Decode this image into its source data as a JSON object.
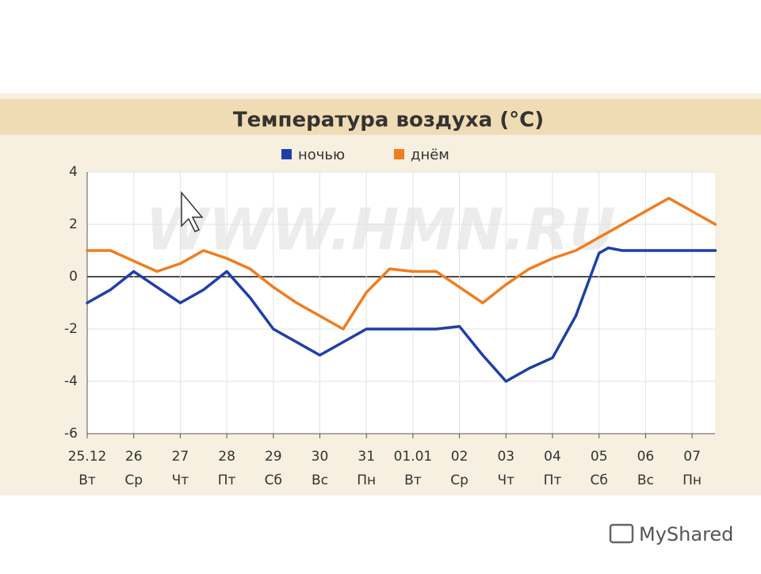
{
  "chart_data": {
    "type": "line",
    "title": "Температура воздуха (°С)",
    "watermark": "WWW.HMN.RU",
    "brand": "MyShared",
    "xlim": [
      0,
      13.5
    ],
    "xticks": [
      {
        "value": 0,
        "label": "25.12"
      },
      {
        "value": 1,
        "label": "26"
      },
      {
        "value": 2,
        "label": "27"
      },
      {
        "value": 3,
        "label": "28"
      },
      {
        "value": 4,
        "label": "29"
      },
      {
        "value": 5,
        "label": "30"
      },
      {
        "value": 6,
        "label": "31"
      },
      {
        "value": 7,
        "label": "01.01"
      },
      {
        "value": 8,
        "label": "02"
      },
      {
        "value": 9,
        "label": "03"
      },
      {
        "value": 10,
        "label": "04"
      },
      {
        "value": 11,
        "label": "05"
      },
      {
        "value": 12,
        "label": "06"
      },
      {
        "value": 13,
        "label": "07"
      }
    ],
    "weekdays": [
      "Вт",
      "Ср",
      "Чт",
      "Пт",
      "Сб",
      "Вс",
      "Пн",
      "Вт",
      "Ср",
      "Чт",
      "Пт",
      "Сб",
      "Вс",
      "Пн"
    ],
    "ylim": [
      -6,
      4
    ],
    "yticks": [
      -6,
      -4,
      -2,
      0,
      2,
      4
    ],
    "grid": true,
    "series": [
      {
        "name": "ночью",
        "color": "#1f3fa8",
        "x": [
          0,
          0.5,
          1,
          1.5,
          2,
          2.5,
          3,
          3.5,
          4,
          4.5,
          5,
          5.5,
          6,
          6.5,
          7,
          7.5,
          8,
          8.5,
          9,
          9.5,
          10,
          10.5,
          11,
          11.2,
          11.5,
          12,
          13,
          13.5
        ],
        "values": [
          -1,
          -0.5,
          0.2,
          -0.4,
          -1,
          -0.5,
          0.2,
          -0.8,
          -2,
          -2.5,
          -3,
          -2.5,
          -2,
          -2,
          -2,
          -2,
          -1.9,
          -3,
          -4,
          -3.5,
          -3.1,
          -1.5,
          0.9,
          1.1,
          1,
          1,
          1,
          1
        ]
      },
      {
        "name": "днём",
        "color": "#f07d1e",
        "x": [
          0,
          0.5,
          1,
          1.5,
          2,
          2.5,
          3,
          3.5,
          4,
          4.5,
          5,
          5.5,
          6,
          6.5,
          7,
          7.5,
          8,
          8.5,
          9,
          9.5,
          10,
          10.5,
          11,
          11.5,
          12,
          12.5,
          13,
          13.5
        ],
        "values": [
          1,
          1,
          0.6,
          0.2,
          0.5,
          1,
          0.7,
          0.3,
          -0.4,
          -1,
          -1.5,
          -2,
          -0.6,
          0.3,
          0.2,
          0.2,
          -0.4,
          -1,
          -0.3,
          0.3,
          0.7,
          1,
          1.5,
          2,
          2.5,
          3,
          2.5,
          2
        ]
      }
    ]
  }
}
